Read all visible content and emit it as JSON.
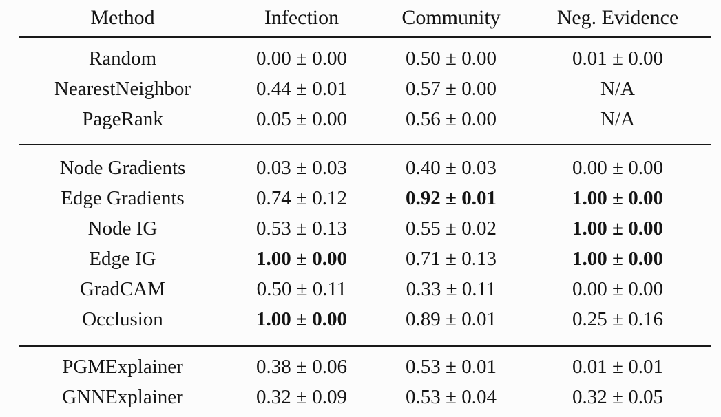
{
  "colors": {
    "background": "#fcfcfc",
    "text": "#141414",
    "rule": "#191919"
  },
  "table": {
    "header": [
      "Method",
      "Infection",
      "Community",
      "Neg. Evidence"
    ],
    "rows": [
      {
        "cells": [
          "Random",
          "0.00 ± 0.00",
          "0.50 ± 0.00",
          "0.01 ± 0.00"
        ],
        "bold": [
          false,
          false,
          false,
          false
        ]
      },
      {
        "cells": [
          "NearestNeighbor",
          "0.44 ± 0.01",
          "0.57 ± 0.00",
          "N/A"
        ],
        "bold": [
          false,
          false,
          false,
          false
        ]
      },
      {
        "cells": [
          "PageRank",
          "0.05 ± 0.00",
          "0.56 ± 0.00",
          "N/A"
        ],
        "bold": [
          false,
          false,
          false,
          false
        ]
      },
      {
        "cells": [
          "Node Gradients",
          "0.03 ± 0.03",
          "0.40 ± 0.03",
          "0.00 ± 0.00"
        ],
        "bold": [
          false,
          false,
          false,
          false
        ]
      },
      {
        "cells": [
          "Edge Gradients",
          "0.74 ± 0.12",
          "0.92 ± 0.01",
          "1.00 ± 0.00"
        ],
        "bold": [
          false,
          false,
          true,
          true
        ]
      },
      {
        "cells": [
          "Node IG",
          "0.53 ± 0.13",
          "0.55 ± 0.02",
          "1.00 ± 0.00"
        ],
        "bold": [
          false,
          false,
          false,
          true
        ]
      },
      {
        "cells": [
          "Edge IG",
          "1.00 ± 0.00",
          "0.71 ± 0.13",
          "1.00 ± 0.00"
        ],
        "bold": [
          false,
          true,
          false,
          true
        ]
      },
      {
        "cells": [
          "GradCAM",
          "0.50 ± 0.11",
          "0.33 ± 0.11",
          "0.00 ± 0.00"
        ],
        "bold": [
          false,
          false,
          false,
          false
        ]
      },
      {
        "cells": [
          "Occlusion",
          "1.00 ± 0.00",
          "0.89 ± 0.01",
          "0.25 ± 0.16"
        ],
        "bold": [
          false,
          true,
          false,
          false
        ]
      },
      {
        "cells": [
          "PGMExplainer",
          "0.38 ± 0.06",
          "0.53 ± 0.01",
          "0.01 ± 0.01"
        ],
        "bold": [
          false,
          false,
          false,
          false
        ]
      },
      {
        "cells": [
          "GNNExplainer",
          "0.32 ± 0.09",
          "0.53 ± 0.04",
          "0.32 ± 0.05"
        ],
        "bold": [
          false,
          false,
          false,
          false
        ]
      }
    ]
  }
}
